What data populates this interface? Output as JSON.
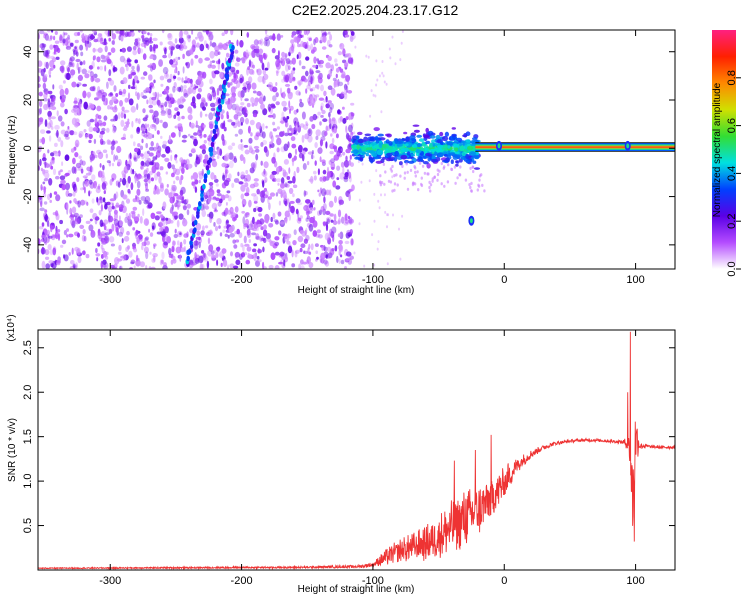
{
  "title": "C2E2.2025.204.23.17.G12",
  "chart_data": [
    {
      "type": "heatmap",
      "xlabel": "Height of straight line (km)",
      "ylabel": "Frequency (Hz)",
      "xlim": [
        -355,
        130
      ],
      "ylim": [
        -50,
        49
      ],
      "xticks": [
        -300,
        -200,
        -100,
        0,
        100
      ],
      "yticks": [
        -40,
        -20,
        0,
        20,
        40
      ],
      "grid": false,
      "noise_region_x": [
        -355,
        -115
      ],
      "cluster_region_x": [
        -115,
        -20
      ],
      "carrier_band": {
        "x": [
          -22,
          130
        ],
        "y_center": 0.5,
        "y_halfwidth": 1.8
      },
      "diagonal_streak": {
        "points": [
          [
            -242,
            -48
          ],
          [
            -218,
            12
          ],
          [
            -207,
            42
          ]
        ]
      },
      "spot_features": [
        [
          -25,
          -30
        ],
        [
          -4,
          1
        ],
        [
          94,
          1
        ]
      ],
      "colorbar": {
        "label": "Normalized spectral amplitude",
        "range": [
          0.0,
          1.0
        ],
        "ticks": [
          0.0,
          0.2,
          0.4,
          0.6,
          0.8
        ],
        "tick_labels": [
          "0.0",
          "0.2",
          "0.4",
          "0.6",
          "0.8"
        ],
        "colors": [
          "#ffffff",
          "#b44cff",
          "#5a00e6",
          "#0040ff",
          "#00e0e0",
          "#33dd33",
          "#d0e000",
          "#ff8800",
          "#ff2000",
          "#ff2080"
        ]
      }
    },
    {
      "type": "line",
      "xlabel": "Height of straight line (km)",
      "ylabel": "SNR (10 * v/v)",
      "y_multiplier_label": "(x10⁴)",
      "xlim": [
        -355,
        130
      ],
      "ylim": [
        0,
        2.7
      ],
      "xticks": [
        -300,
        -200,
        -100,
        0,
        100
      ],
      "yticks": [
        0.5,
        1.0,
        1.5,
        2.0,
        2.5
      ],
      "ytick_labels": [
        "0.5",
        "1.0",
        "1.5",
        "2.0",
        "2.5"
      ],
      "grid": false,
      "series": [
        {
          "color": "#ee3333",
          "envelope": {
            "x": [
              -355,
              -150,
              -110,
              -100,
              -90,
              -80,
              -70,
              -60,
              -50,
              -40,
              -30,
              -20,
              -10,
              0,
              10,
              20,
              30,
              40,
              50,
              60,
              70,
              80,
              90,
              95,
              98,
              100,
              103,
              110,
              120,
              130
            ],
            "mean": [
              0.02,
              0.03,
              0.04,
              0.06,
              0.14,
              0.22,
              0.25,
              0.3,
              0.38,
              0.48,
              0.58,
              0.66,
              0.8,
              0.98,
              1.18,
              1.3,
              1.38,
              1.43,
              1.45,
              1.46,
              1.46,
              1.45,
              1.44,
              1.42,
              0.8,
              1.5,
              1.4,
              1.39,
              1.38,
              1.38
            ],
            "spread": [
              0.01,
              0.02,
              0.03,
              0.05,
              0.16,
              0.22,
              0.28,
              0.34,
              0.42,
              0.52,
              0.55,
              0.5,
              0.45,
              0.3,
              0.15,
              0.08,
              0.05,
              0.04,
              0.03,
              0.03,
              0.03,
              0.03,
              0.04,
              0.15,
              0.9,
              0.6,
              0.08,
              0.03,
              0.03,
              0.03
            ]
          },
          "peaks": [
            [
              -38,
              1.23
            ],
            [
              -22,
              1.35
            ],
            [
              -10,
              1.52
            ],
            [
              3,
              1.2
            ],
            [
              96,
              2.68
            ],
            [
              99,
              0.32
            ],
            [
              94,
              2.0
            ]
          ]
        }
      ]
    }
  ]
}
